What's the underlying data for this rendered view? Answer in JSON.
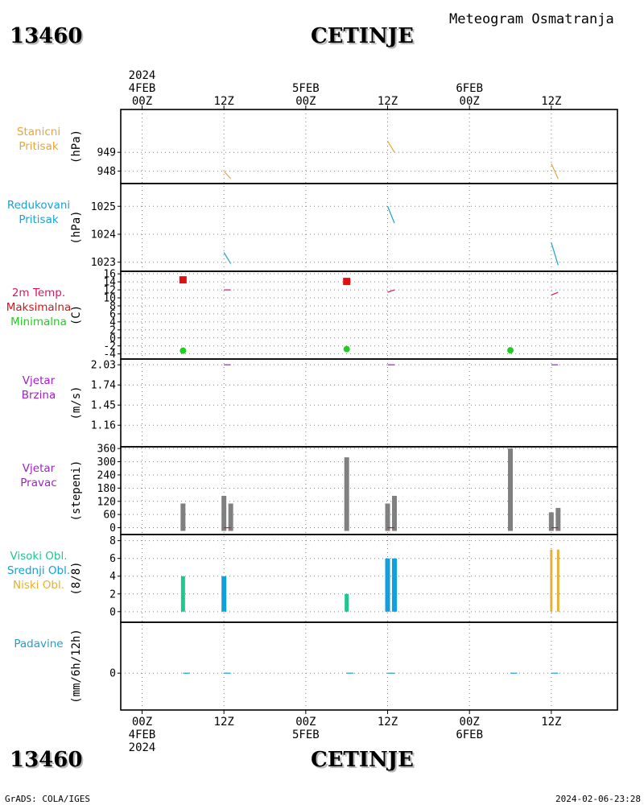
{
  "station_id": "13460",
  "station_name": "CETINJE",
  "title": "Meteogram Osmatranja",
  "footer_left": "GrADS: COLA/IGES",
  "footer_right": "2024-02-06-23:28",
  "colors": {
    "pressure": "#e6a53a",
    "reduced": "#1ea0d2",
    "temp_label": "#dc1464",
    "max": "#e01010",
    "min": "#22cc22",
    "wind": "#a020c8",
    "bars": "#808080",
    "cloud_high": "#1ec88c",
    "cloud_mid": "#10a0e0",
    "cloud_low": "#e6b030",
    "precip": "#1ea0d2",
    "grid": "#808080"
  },
  "chart_data": {
    "type": "line",
    "x_axis": {
      "start": "2024-02-04 00Z",
      "end": "2024-02-07 00Z",
      "top_labels": [
        {
          "t": "04FEB 00Z",
          "lines": [
            "2024",
            "4FEB",
            "00Z"
          ]
        },
        {
          "t": "04FEB 12Z",
          "lines": [
            "12Z"
          ]
        },
        {
          "t": "05FEB 00Z",
          "lines": [
            "5FEB",
            "00Z"
          ]
        },
        {
          "t": "05FEB 12Z",
          "lines": [
            "12Z"
          ]
        },
        {
          "t": "06FEB 00Z",
          "lines": [
            "6FEB",
            "00Z"
          ]
        },
        {
          "t": "06FEB 12Z",
          "lines": [
            "12Z"
          ]
        }
      ],
      "bottom_labels": [
        {
          "t": "04FEB 00Z",
          "lines": [
            "00Z",
            "4FEB",
            "2024"
          ]
        },
        {
          "t": "04FEB 12Z",
          "lines": [
            "12Z"
          ]
        },
        {
          "t": "05FEB 00Z",
          "lines": [
            "00Z",
            "5FEB"
          ]
        },
        {
          "t": "05FEB 12Z",
          "lines": [
            "12Z"
          ]
        },
        {
          "t": "06FEB 00Z",
          "lines": [
            "00Z",
            "6FEB"
          ]
        },
        {
          "t": "06FEB 12Z",
          "lines": [
            "12Z"
          ]
        }
      ]
    },
    "panels": [
      {
        "id": "stanicni",
        "labels": [
          "Stanicni",
          "Pritisak"
        ],
        "label_colors": [
          "pressure",
          "pressure"
        ],
        "unit": "(hPa)",
        "ylim": [
          947.5,
          950.8
        ],
        "yticks": [
          948,
          949
        ],
        "series": [
          {
            "kind": "line",
            "color": "pressure",
            "segments": [
              [
                [
                  "2024-02-04 12Z",
                  948.0
                ],
                [
                  "2024-02-04 13Z",
                  947.6
                ]
              ],
              [
                [
                  "2024-02-05 12Z",
                  949.6
                ],
                [
                  "2024-02-05 13Z",
                  949.0
                ]
              ],
              [
                [
                  "2024-02-06 12Z",
                  948.4
                ],
                [
                  "2024-02-06 13Z",
                  947.6
                ]
              ]
            ]
          }
        ]
      },
      {
        "id": "redukovani",
        "labels": [
          "Redukovani",
          "Pritisak"
        ],
        "label_colors": [
          "reduced",
          "reduced"
        ],
        "unit": "(hPa)",
        "ylim": [
          1022.8,
          1025.5
        ],
        "yticks": [
          1023,
          1024,
          1025
        ],
        "series": [
          {
            "kind": "line",
            "color": "reduced",
            "segments": [
              [
                [
                  "2024-02-04 12Z",
                  1023.35
                ],
                [
                  "2024-02-04 13Z",
                  1022.95
                ]
              ],
              [
                [
                  "2024-02-05 12Z",
                  1025.0
                ],
                [
                  "2024-02-05 13Z",
                  1024.4
                ]
              ],
              [
                [
                  "2024-02-06 12Z",
                  1023.7
                ],
                [
                  "2024-02-06 13Z",
                  1022.9
                ]
              ]
            ]
          }
        ]
      },
      {
        "id": "temp",
        "labels": [
          "2m Temp.",
          "Maksimalna",
          "Minimalna"
        ],
        "label_colors": [
          "temp_label",
          "max",
          "min"
        ],
        "unit": "(C)",
        "ylim": [
          -4.4,
          16.2
        ],
        "yticks": [
          -4,
          -2,
          0,
          2,
          4,
          6,
          8,
          10,
          12,
          14,
          16
        ],
        "series": [
          {
            "kind": "line",
            "color": "temp_label",
            "segments": [
              [
                [
                  "2024-02-04 12Z",
                  12.0
                ],
                [
                  "2024-02-04 13Z",
                  12.0
                ]
              ],
              [
                [
                  "2024-02-05 12Z",
                  11.4
                ],
                [
                  "2024-02-05 13Z",
                  12.0
                ]
              ],
              [
                [
                  "2024-02-06 12Z",
                  10.7
                ],
                [
                  "2024-02-06 13Z",
                  11.4
                ]
              ]
            ]
          },
          {
            "kind": "square",
            "color": "max",
            "points": [
              [
                "2024-02-04 06Z",
                14.5
              ],
              [
                "2024-02-05 06Z",
                14.1
              ]
            ]
          },
          {
            "kind": "dot",
            "color": "min",
            "points": [
              [
                "2024-02-04 06Z",
                -3.2
              ],
              [
                "2024-02-05 06Z",
                -2.8
              ],
              [
                "2024-02-06 06Z",
                -3.1
              ]
            ]
          }
        ]
      },
      {
        "id": "vjetar_brzina",
        "labels": [
          "Vjetar",
          "Brzina"
        ],
        "label_colors": [
          "wind",
          "wind"
        ],
        "unit": "(m/s)",
        "ylim": [
          0.9,
          2.05
        ],
        "yticks": [
          1.16,
          1.45,
          1.74,
          2.03
        ],
        "series": [
          {
            "kind": "line",
            "color": "wind",
            "segments": [
              [
                [
                  "2024-02-04 12Z",
                  2.03
                ],
                [
                  "2024-02-04 13Z",
                  2.03
                ]
              ],
              [
                [
                  "2024-02-05 12Z",
                  2.03
                ],
                [
                  "2024-02-05 13Z",
                  2.03
                ]
              ],
              [
                [
                  "2024-02-06 12Z",
                  2.03
                ],
                [
                  "2024-02-06 13Z",
                  2.03
                ]
              ]
            ]
          }
        ]
      },
      {
        "id": "vjetar_pravac",
        "labels": [
          "Vjetar",
          "Pravac"
        ],
        "label_colors": [
          "wind",
          "wind"
        ],
        "unit": "(stepeni)",
        "ylim": [
          -15,
          360
        ],
        "yticks": [
          0,
          60,
          120,
          180,
          240,
          300,
          360
        ],
        "series": [
          {
            "kind": "bar",
            "color": "bars",
            "width": 6,
            "points": [
              [
                "2024-02-04 06Z",
                110
              ],
              [
                "2024-02-04 12Z",
                145
              ],
              [
                "2024-02-04 13Z",
                110
              ],
              [
                "2024-02-05 06Z",
                320
              ],
              [
                "2024-02-05 12Z",
                110
              ],
              [
                "2024-02-05 13Z",
                145
              ],
              [
                "2024-02-06 06Z",
                360
              ],
              [
                "2024-02-06 12Z",
                70
              ],
              [
                "2024-02-06 13Z",
                90
              ]
            ]
          },
          {
            "kind": "line",
            "color": "max",
            "segments": [
              [
                [
                  "2024-02-04 12Z",
                  0
                ],
                [
                  "2024-02-04 13Z",
                  0
                ]
              ],
              [
                [
                  "2024-02-05 12Z",
                  0
                ],
                [
                  "2024-02-05 13Z",
                  0
                ]
              ],
              [
                [
                  "2024-02-06 12Z",
                  0
                ],
                [
                  "2024-02-06 13Z",
                  0
                ]
              ]
            ]
          }
        ]
      },
      {
        "id": "oblacnost",
        "labels": [
          "Visoki Obl.",
          "Srednji Obl.",
          "Niski Obl."
        ],
        "label_colors": [
          "cloud_high",
          "cloud_mid",
          "cloud_low"
        ],
        "unit": "(8/8)",
        "ylim": [
          -0.8,
          8.2
        ],
        "yticks": [
          0,
          2,
          4,
          6,
          8
        ],
        "series": [
          {
            "kind": "bar",
            "color": "cloud_high",
            "width": 5,
            "points": [
              [
                "2024-02-04 06Z",
                4
              ],
              [
                "2024-02-05 06Z",
                2
              ]
            ]
          },
          {
            "kind": "bar",
            "color": "cloud_mid",
            "width": 6,
            "points": [
              [
                "2024-02-04 12Z",
                4
              ],
              [
                "2024-02-05 12Z",
                6
              ],
              [
                "2024-02-05 13Z",
                6
              ]
            ]
          },
          {
            "kind": "bar",
            "color": "cloud_low",
            "width": 3,
            "points": [
              [
                "2024-02-06 12Z",
                7
              ],
              [
                "2024-02-06 13Z",
                7
              ]
            ]
          }
        ]
      },
      {
        "id": "padavine",
        "labels": [
          "Padavine"
        ],
        "label_colors": [
          "precip"
        ],
        "unit": "(mm/6h/12h)",
        "ylim": [
          -2,
          2
        ],
        "yticks": [
          0
        ],
        "series": [
          {
            "kind": "line",
            "color": "precip",
            "segments": [
              [
                [
                  "2024-02-04 06Z",
                  0
                ],
                [
                  "2024-02-04 07Z",
                  0
                ]
              ],
              [
                [
                  "2024-02-04 12Z",
                  0
                ],
                [
                  "2024-02-04 13Z",
                  0
                ]
              ],
              [
                [
                  "2024-02-05 06Z",
                  0
                ],
                [
                  "2024-02-05 07Z",
                  0
                ]
              ],
              [
                [
                  "2024-02-05 12Z",
                  0
                ],
                [
                  "2024-02-05 13Z",
                  0
                ]
              ],
              [
                [
                  "2024-02-06 06Z",
                  0
                ],
                [
                  "2024-02-06 07Z",
                  0
                ]
              ],
              [
                [
                  "2024-02-06 12Z",
                  0
                ],
                [
                  "2024-02-06 13Z",
                  0
                ]
              ]
            ]
          }
        ]
      }
    ]
  }
}
